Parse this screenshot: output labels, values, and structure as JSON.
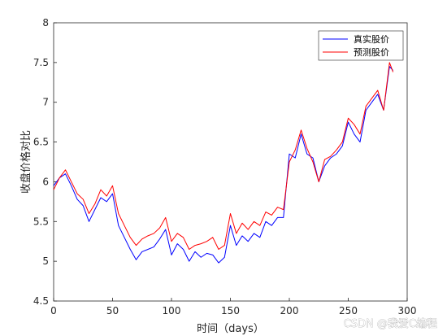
{
  "chart_data": {
    "type": "line",
    "xlabel": "时间（days）",
    "ylabel": "收盘价格对比",
    "xlim": [
      0,
      300
    ],
    "ylim": [
      4.5,
      8
    ],
    "xticks": [
      0,
      50,
      100,
      150,
      200,
      250,
      300
    ],
    "yticks": [
      4.5,
      5,
      5.5,
      6,
      6.5,
      7,
      7.5,
      8
    ],
    "grid": false,
    "legend_position": "top-right",
    "series": [
      {
        "name": "真实股价",
        "color": "#0000ff",
        "x": [
          0,
          5,
          10,
          15,
          20,
          25,
          30,
          35,
          40,
          45,
          50,
          55,
          60,
          65,
          70,
          75,
          80,
          85,
          90,
          95,
          100,
          105,
          110,
          115,
          120,
          125,
          130,
          135,
          140,
          145,
          150,
          155,
          160,
          165,
          170,
          175,
          180,
          185,
          190,
          195,
          200,
          205,
          210,
          215,
          220,
          225,
          230,
          235,
          240,
          245,
          250,
          255,
          260,
          265,
          270,
          275,
          280,
          285,
          288
        ],
        "values": [
          5.95,
          6.05,
          6.1,
          5.95,
          5.78,
          5.7,
          5.5,
          5.65,
          5.8,
          5.75,
          5.85,
          5.45,
          5.3,
          5.15,
          5.02,
          5.12,
          5.15,
          5.18,
          5.28,
          5.4,
          5.08,
          5.22,
          5.15,
          5.0,
          5.12,
          5.05,
          5.1,
          5.08,
          4.98,
          5.05,
          5.45,
          5.2,
          5.32,
          5.25,
          5.35,
          5.3,
          5.5,
          5.45,
          5.55,
          5.55,
          6.35,
          6.3,
          6.6,
          6.35,
          6.3,
          6.0,
          6.2,
          6.3,
          6.35,
          6.45,
          6.75,
          6.6,
          6.5,
          6.9,
          7.0,
          7.1,
          6.9,
          7.45,
          7.4
        ]
      },
      {
        "name": "预测股价",
        "color": "#ff0000",
        "x": [
          0,
          5,
          10,
          15,
          20,
          25,
          30,
          35,
          40,
          45,
          50,
          55,
          60,
          65,
          70,
          75,
          80,
          85,
          90,
          95,
          100,
          105,
          110,
          115,
          120,
          125,
          130,
          135,
          140,
          145,
          150,
          155,
          160,
          165,
          170,
          175,
          180,
          185,
          190,
          195,
          200,
          205,
          210,
          215,
          220,
          225,
          230,
          235,
          240,
          245,
          250,
          255,
          260,
          265,
          270,
          275,
          280,
          285,
          288
        ],
        "values": [
          5.9,
          6.05,
          6.15,
          6.0,
          5.85,
          5.78,
          5.6,
          5.72,
          5.9,
          5.82,
          5.95,
          5.6,
          5.45,
          5.3,
          5.2,
          5.28,
          5.32,
          5.35,
          5.42,
          5.55,
          5.25,
          5.35,
          5.3,
          5.15,
          5.2,
          5.22,
          5.25,
          5.3,
          5.15,
          5.2,
          5.6,
          5.35,
          5.48,
          5.4,
          5.5,
          5.45,
          5.62,
          5.58,
          5.68,
          5.65,
          6.25,
          6.4,
          6.65,
          6.42,
          6.25,
          6.0,
          6.28,
          6.32,
          6.4,
          6.5,
          6.8,
          6.72,
          6.6,
          6.95,
          7.05,
          7.15,
          6.9,
          7.5,
          7.38
        ]
      }
    ]
  },
  "watermark": "CSDN @我爱C编程"
}
